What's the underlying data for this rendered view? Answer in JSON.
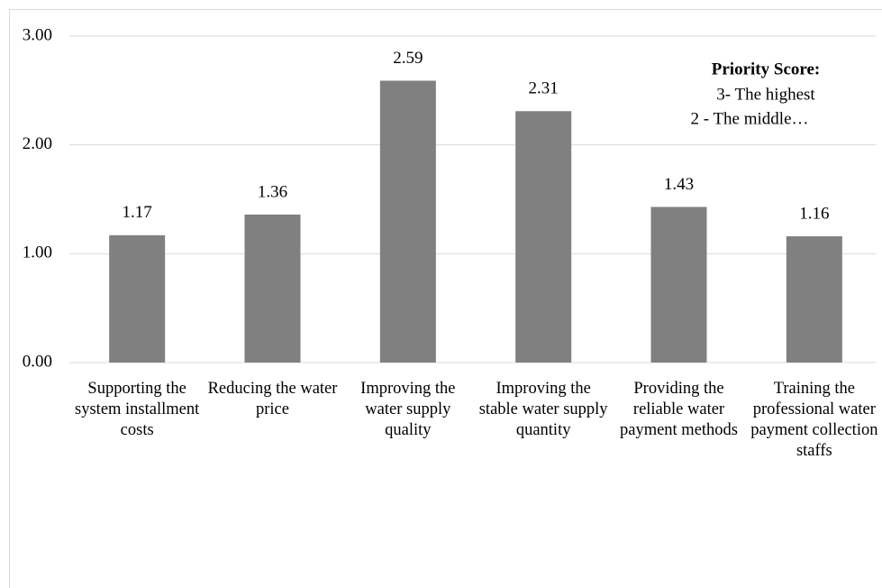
{
  "chart_data": {
    "type": "bar",
    "categories": [
      "Supporting the system installment costs",
      "Reducing the water price",
      "Improving the water supply quality",
      "Improving the stable water supply quantity",
      "Providing the reliable water payment methods",
      "Training the professional water payment collection staffs"
    ],
    "values": [
      1.17,
      1.36,
      2.59,
      2.31,
      1.43,
      1.16
    ],
    "color": "#808080",
    "ylim": [
      0,
      3
    ],
    "yticks": [
      {
        "value": 0,
        "label": "0.00"
      },
      {
        "value": 1,
        "label": "1.00"
      },
      {
        "value": 2,
        "label": "2.00"
      },
      {
        "value": 3,
        "label": "3.00"
      }
    ],
    "grid": true,
    "annotations": [
      "Priority Score:",
      "3- The highest",
      "2 - The middle…"
    ]
  }
}
